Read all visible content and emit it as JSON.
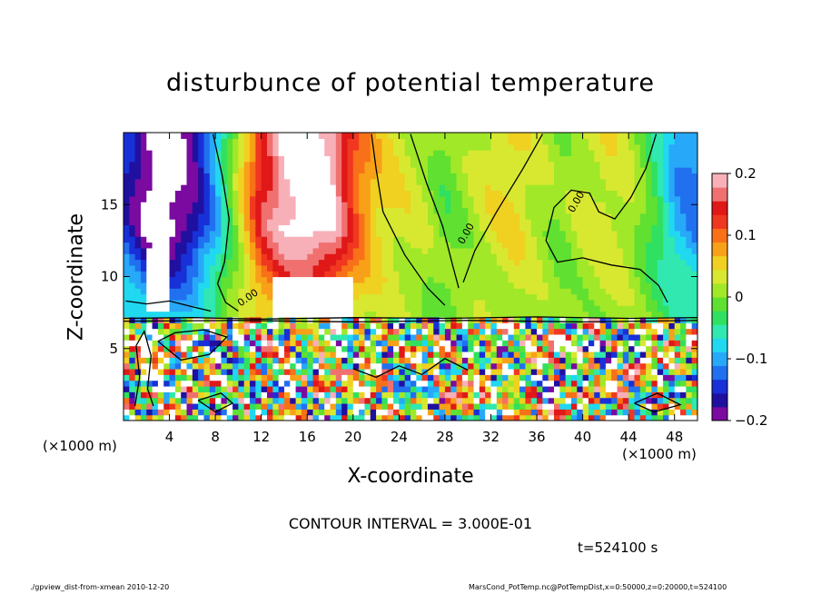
{
  "chart_data": {
    "type": "heatmap",
    "title": "disturbunce of potential temperature",
    "xlabel": "X-coordinate",
    "ylabel": "Z-coordinate",
    "x_unit_left": "(×1000 m)",
    "x_unit_right": "(×1000 m)",
    "xlim": [
      0,
      50
    ],
    "ylim": [
      0,
      20
    ],
    "x_ticks": [
      4,
      8,
      12,
      16,
      20,
      24,
      28,
      32,
      36,
      40,
      44,
      48
    ],
    "y_ticks": [
      5,
      10,
      15
    ],
    "colorbar": {
      "range": [
        -0.2,
        0.2
      ],
      "ticks": [
        0.2,
        0.1,
        0,
        -0.1,
        -0.2
      ],
      "tick_labels": [
        "0.2",
        "0.1",
        "0",
        "−0.1",
        "−0.2"
      ]
    },
    "contour_labels": [
      "0.00",
      "0.00",
      "0.00"
    ],
    "contour_interval": "CONTOUR INTERVAL = 3.000E-01",
    "time": "t=524100 s",
    "footer_left": "./gpview_dist-from-xmean 2010-12-20",
    "footer_right": "MarsCond_PotTemp.nc@PotTempDist,x=0:50000,z=0:20000,t=524100",
    "upper_field_profile": {
      "x": [
        0,
        2,
        3.5,
        6,
        8,
        10,
        12,
        14,
        16,
        18,
        20,
        22,
        24,
        26,
        28,
        30,
        32,
        34,
        36,
        38,
        40,
        42,
        44,
        46,
        48,
        50
      ],
      "values": [
        -0.12,
        -0.17,
        -0.19,
        -0.15,
        -0.08,
        0.02,
        0.12,
        0.17,
        0.19,
        0.17,
        0.1,
        0.05,
        0.03,
        0.02,
        -0.01,
        0.01,
        0.03,
        0.04,
        0.02,
        0.0,
        0.02,
        0.03,
        0.02,
        -0.02,
        -0.08,
        -0.1
      ]
    },
    "lower_layer_top": 7.3
  }
}
